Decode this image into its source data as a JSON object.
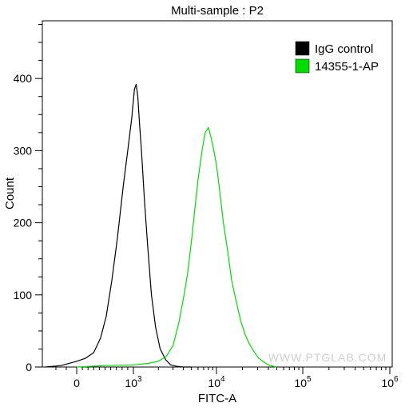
{
  "chart_data": {
    "type": "line",
    "title": "Multi-sample : P2",
    "xlabel": "FITC-A",
    "ylabel": "Count",
    "x_scale": "biexponential",
    "x_ticks": [
      {
        "value": 0,
        "label": "0",
        "exp": ""
      },
      {
        "value": 1000,
        "label": "10",
        "exp": "3"
      },
      {
        "value": 10000,
        "label": "10",
        "exp": "4"
      },
      {
        "value": 100000,
        "label": "10",
        "exp": "5"
      },
      {
        "value": 1000000,
        "label": "10",
        "exp": "6"
      }
    ],
    "xlim": [
      -300,
      1000000
    ],
    "ylim": [
      0,
      480
    ],
    "y_ticks": [
      0,
      100,
      200,
      300,
      400
    ],
    "grid": false,
    "legend_position": "top-right",
    "watermark": "WWW.PTGLAB.COM",
    "series": [
      {
        "name": "IgG control",
        "color": "#000000",
        "x": [
          -300,
          -150,
          0,
          150,
          300,
          420,
          520,
          620,
          720,
          820,
          900,
          970,
          1030,
          1080,
          1130,
          1180,
          1250,
          1350,
          1480,
          1650,
          1850,
          2100,
          2450,
          2800,
          3300,
          4000,
          5000
        ],
        "y": [
          0,
          2,
          8,
          12,
          20,
          40,
          70,
          120,
          180,
          250,
          300,
          345,
          385,
          392,
          375,
          340,
          300,
          235,
          170,
          100,
          55,
          25,
          10,
          3,
          1,
          0,
          0
        ]
      },
      {
        "name": "14355-1-AP",
        "color": "#00dd00",
        "x": [
          0,
          500,
          1000,
          1500,
          2000,
          2500,
          3000,
          3500,
          4000,
          4500,
          5000,
          5500,
          6000,
          6700,
          7300,
          8000,
          8600,
          9300,
          10000,
          11000,
          12000,
          13500,
          15000,
          17000,
          19000,
          21500,
          24000,
          27000,
          31000,
          36000,
          42000,
          50000
        ],
        "y": [
          0,
          2,
          3,
          5,
          8,
          15,
          30,
          60,
          95,
          130,
          175,
          220,
          260,
          300,
          325,
          332,
          318,
          300,
          280,
          240,
          200,
          160,
          120,
          90,
          65,
          45,
          32,
          22,
          12,
          6,
          2,
          0
        ]
      }
    ]
  }
}
